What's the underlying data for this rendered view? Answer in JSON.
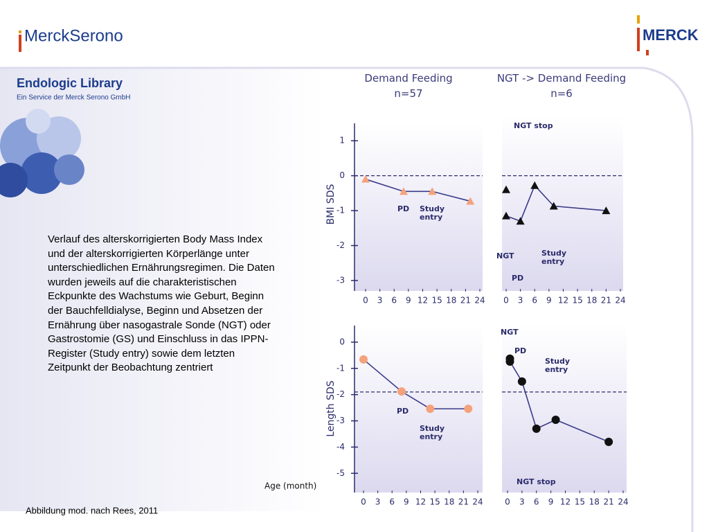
{
  "header": {
    "logo_left": "MerckSerono",
    "logo_right": "MERCK"
  },
  "sidebar": {
    "title": "Endologic Library",
    "subtitle": "Ein Service der Merck Serono GmbH"
  },
  "description": "Verlauf des alterskorrigierten Body Mass Index und der alterskorrigierten Körperlänge unter unterschiedlichen Ernährungsregimen. Die Daten wurden jeweils auf die charakteristischen Eckpunkte des Wachstums wie Geburt, Beginn der Bauchfelldialyse, Beginn und Absetzen der Ernährung über nasogastrale Sonde (NGT) oder Gastrostomie (GS) und Einschluss in das IPPN-Register (Study entry) sowie dem letzten Zeitpunkt der Beobachtung zentriert",
  "footer": "Abbildung mod. nach Rees, 2011",
  "x_axis_label": "Age (month)",
  "chart_data": [
    {
      "type": "line",
      "title": "Demand Feeding",
      "subtitle": "n=57",
      "ylabel": "BMI SDS",
      "xlim": [
        0,
        24
      ],
      "xticks": [
        0,
        3,
        6,
        9,
        12,
        15,
        18,
        21,
        24
      ],
      "ylim": [
        -3.2,
        1.5
      ],
      "yticks": [
        1,
        0,
        -1,
        -2,
        -3
      ],
      "reference_line": 0,
      "series": [
        {
          "color": "#f4a27c",
          "marker": "triangle",
          "line": true,
          "x": [
            0,
            8,
            14,
            22
          ],
          "values": [
            -0.1,
            -0.45,
            -0.45,
            -0.73
          ]
        }
      ],
      "annotations": [
        "PD",
        "Study entry"
      ]
    },
    {
      "type": "line",
      "title": "NGT -> Demand Feeding",
      "subtitle": "n=6",
      "xlim": [
        0,
        24
      ],
      "xticks": [
        0,
        3,
        6,
        9,
        12,
        15,
        18,
        21,
        24
      ],
      "ylim": [
        -3.2,
        1.5
      ],
      "reference_line": 0,
      "series": [
        {
          "color": "#111111",
          "marker": "triangle",
          "line": false,
          "x": [
            0
          ],
          "values": [
            -0.4
          ]
        },
        {
          "color": "#111111",
          "marker": "triangle",
          "line": true,
          "x": [
            0,
            3,
            6,
            10,
            21
          ],
          "values": [
            -1.15,
            -1.3,
            -0.28,
            -0.87,
            -1.0
          ]
        }
      ],
      "annotations": [
        "NGT stop",
        "NGT",
        "PD",
        "Study entry"
      ]
    },
    {
      "type": "line",
      "ylabel": "Length SDS",
      "xlim": [
        0,
        24
      ],
      "xticks": [
        0,
        3,
        6,
        9,
        12,
        15,
        18,
        21,
        24
      ],
      "ylim": [
        -5.6,
        0.5
      ],
      "yticks": [
        0,
        -1,
        -2,
        -3,
        -4,
        -5
      ],
      "reference_line": -1.9,
      "series": [
        {
          "color": "#f4a27c",
          "marker": "circle",
          "line": true,
          "x": [
            0,
            8,
            14,
            22
          ],
          "values": [
            -0.66,
            -1.88,
            -2.54,
            -2.54
          ]
        }
      ],
      "annotations": [
        "PD",
        "Study entry"
      ]
    },
    {
      "type": "line",
      "xlim": [
        0,
        24
      ],
      "xticks": [
        0,
        3,
        6,
        9,
        12,
        15,
        18,
        21,
        24
      ],
      "ylim": [
        -5.6,
        0.5
      ],
      "reference_line": -1.9,
      "series": [
        {
          "color": "#111111",
          "marker": "circle",
          "line": true,
          "x": [
            0.5,
            0.5,
            3,
            6,
            10,
            21
          ],
          "values": [
            -0.63,
            -0.74,
            -1.5,
            -3.3,
            -2.96,
            -3.8
          ]
        }
      ],
      "annotations": [
        "NGT",
        "PD",
        "Study entry",
        "NGT stop"
      ]
    }
  ]
}
